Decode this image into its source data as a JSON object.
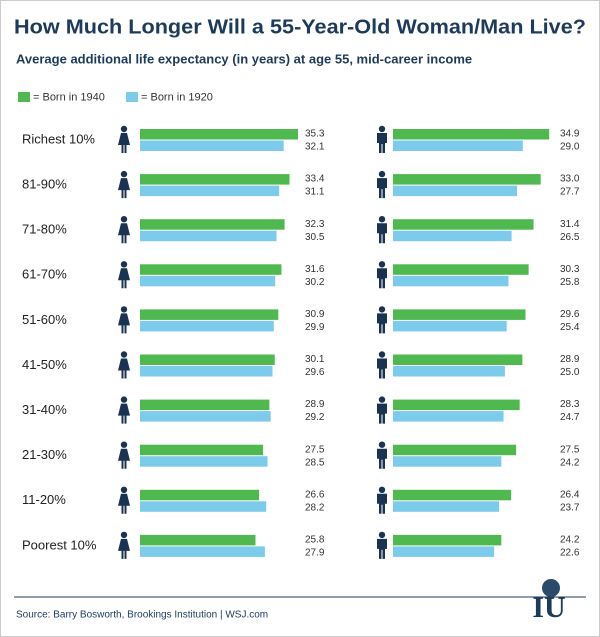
{
  "chart_data": {
    "type": "bar",
    "title": "How Much Longer Will a 55-Year-Old Woman/Man Live?",
    "subtitle": "Average additional life expectancy (in years) at age 55, mid-career income",
    "source": "Source: Barry Bosworth, Brookings Institution  |  WSJ.com",
    "logo": "IU",
    "categories": [
      "Richest 10%",
      "81-90%",
      "71-80%",
      "61-70%",
      "51-60%",
      "41-50%",
      "31-40%",
      "21-30%",
      "11-20%",
      "Poorest 10%"
    ],
    "legend": [
      {
        "name": "= Born in 1940",
        "color": "#4fb94f"
      },
      {
        "name": "= Born in 1920",
        "color": "#7ccbea"
      }
    ],
    "panels": [
      {
        "series": [
          {
            "values": [
              35.3,
              33.4,
              32.3,
              31.6,
              30.9,
              30.1,
              28.9,
              27.5,
              26.6,
              25.8
            ],
            "value_labels": [
              "35.3",
              "33.4",
              "32.3",
              "31.6",
              "30.9",
              "30.1",
              "28.9",
              "27.5",
              "26.6",
              "25.8"
            ]
          },
          {
            "values": [
              32.1,
              31.1,
              30.5,
              30.2,
              29.9,
              29.6,
              29.2,
              28.5,
              28.2,
              27.9
            ],
            "value_labels": [
              "32.1",
              "31.1",
              "30.5",
              "30.2",
              "29.9",
              "29.6",
              "29.2",
              "28.5",
              "28.2",
              "27.9"
            ]
          }
        ]
      },
      {
        "series": [
          {
            "values": [
              34.9,
              33.0,
              31.4,
              30.3,
              29.6,
              28.9,
              28.3,
              27.5,
              26.4,
              24.2
            ],
            "value_labels": [
              "34.9",
              "33.0",
              "31.4",
              "30.3",
              "29.6",
              "28.9",
              "28.3",
              "27.5",
              "26.4",
              "24.2"
            ]
          },
          {
            "values": [
              29.0,
              27.7,
              26.5,
              25.8,
              25.4,
              25.0,
              24.7,
              24.2,
              23.7,
              22.6
            ],
            "value_labels": [
              "29.0",
              "27.7",
              "26.5",
              "25.8",
              "25.4",
              "25.0",
              "24.7",
              "24.2",
              "23.7",
              "22.6"
            ]
          }
        ]
      }
    ]
  }
}
